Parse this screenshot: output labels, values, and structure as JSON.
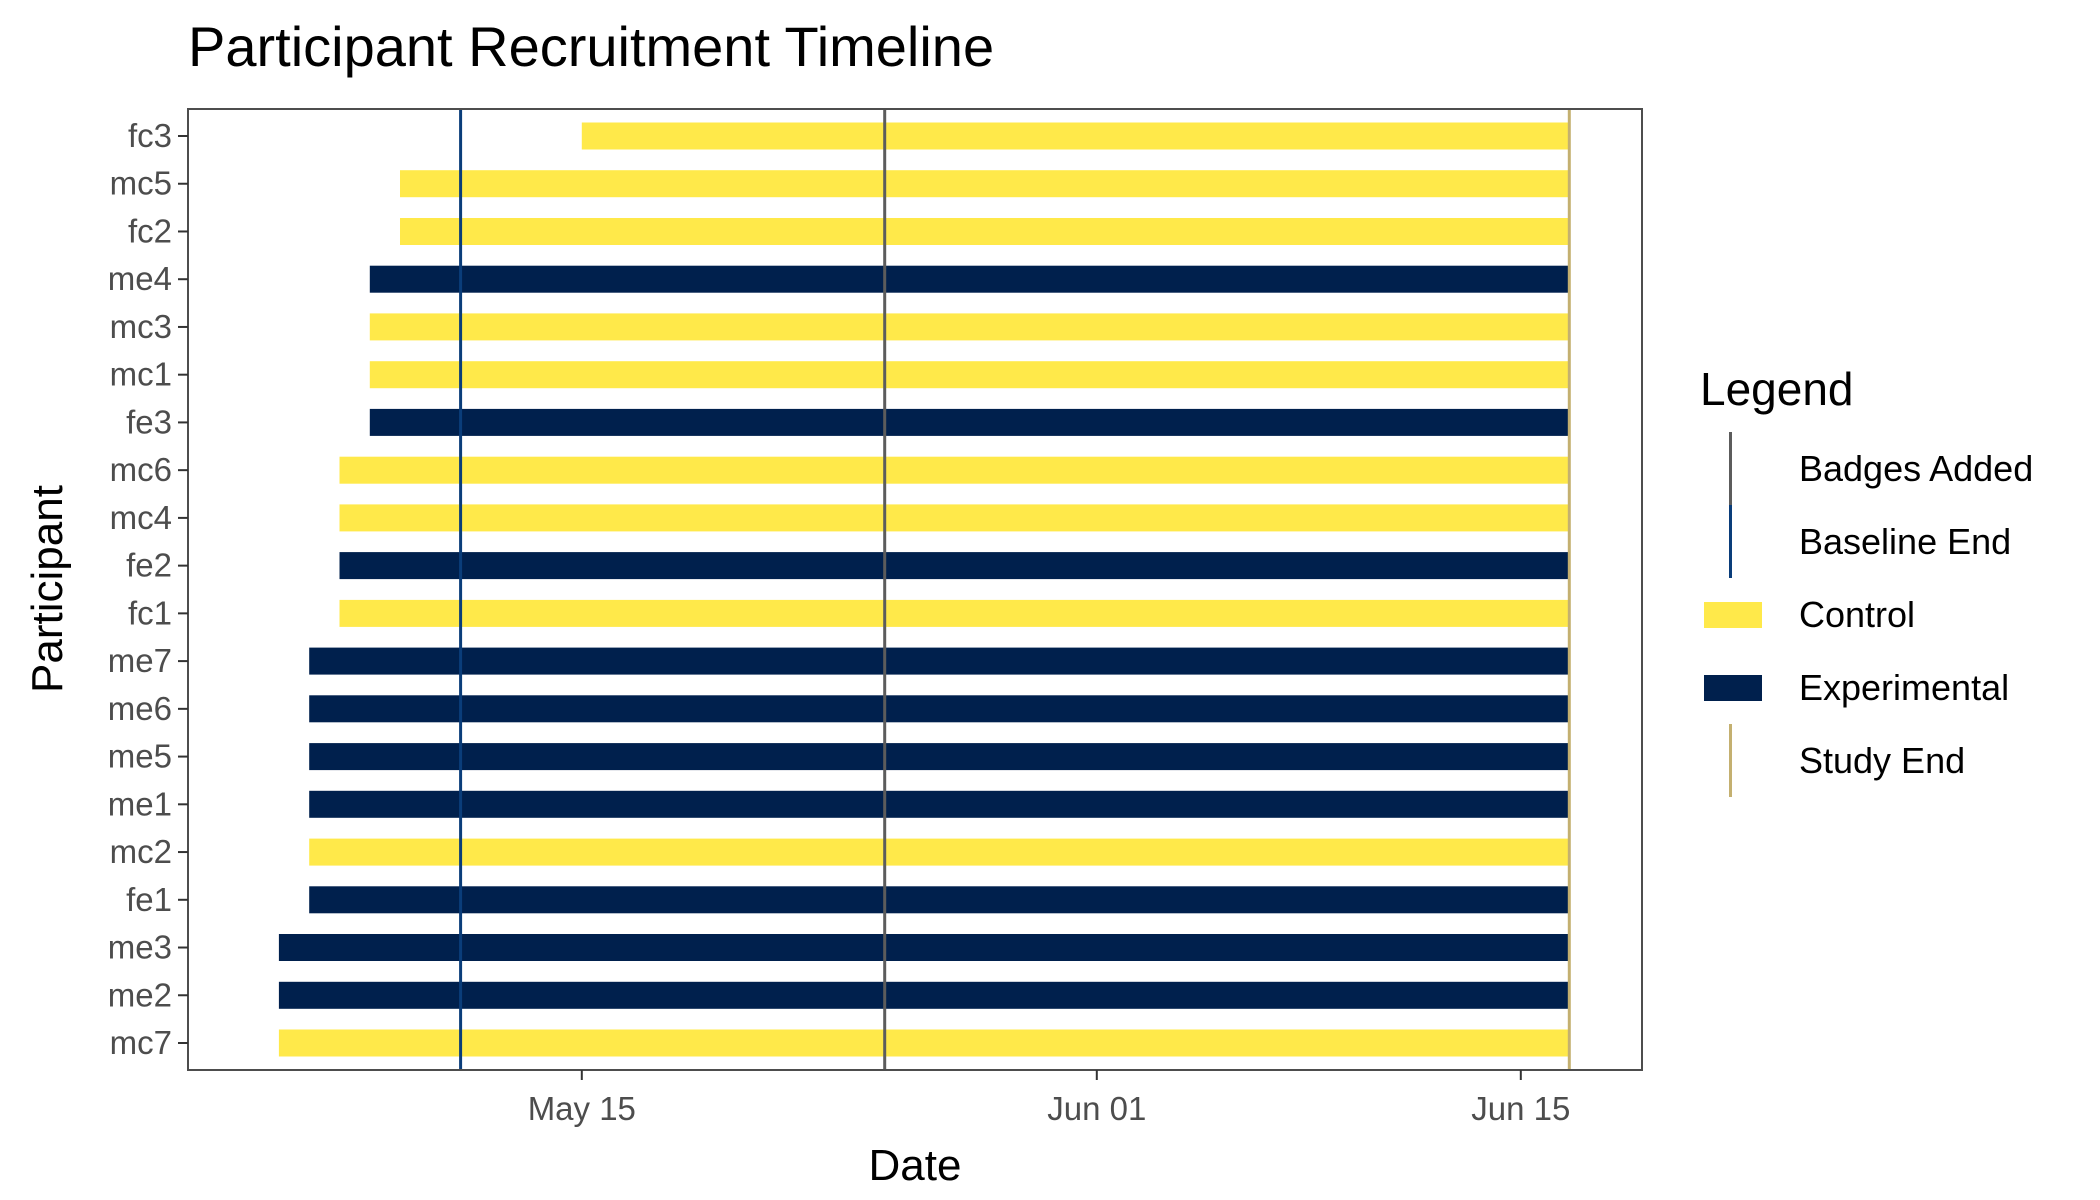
{
  "chart_data": {
    "type": "bar",
    "orientation": "horizontal-range",
    "title": "Participant Recruitment Timeline",
    "xlabel": "Date",
    "ylabel": "Participant",
    "x_ticks": [
      "May 15",
      "Jun 01",
      "Jun 15"
    ],
    "x_tick_dates": [
      "2023-05-15",
      "2023-06-01",
      "2023-06-15"
    ],
    "xlim": [
      "2023-05-02",
      "2023-06-19"
    ],
    "grid": false,
    "legend_position": "right",
    "participants": [
      {
        "id": "fc3",
        "group": "Control",
        "start": "2023-05-15",
        "end": "2023-06-16"
      },
      {
        "id": "mc5",
        "group": "Control",
        "start": "2023-05-09",
        "end": "2023-06-16"
      },
      {
        "id": "fc2",
        "group": "Control",
        "start": "2023-05-09",
        "end": "2023-06-16"
      },
      {
        "id": "me4",
        "group": "Experimental",
        "start": "2023-05-08",
        "end": "2023-06-16"
      },
      {
        "id": "mc3",
        "group": "Control",
        "start": "2023-05-08",
        "end": "2023-06-16"
      },
      {
        "id": "mc1",
        "group": "Control",
        "start": "2023-05-08",
        "end": "2023-06-16"
      },
      {
        "id": "fe3",
        "group": "Experimental",
        "start": "2023-05-08",
        "end": "2023-06-16"
      },
      {
        "id": "mc6",
        "group": "Control",
        "start": "2023-05-07",
        "end": "2023-06-16"
      },
      {
        "id": "mc4",
        "group": "Control",
        "start": "2023-05-07",
        "end": "2023-06-16"
      },
      {
        "id": "fe2",
        "group": "Experimental",
        "start": "2023-05-07",
        "end": "2023-06-16"
      },
      {
        "id": "fc1",
        "group": "Control",
        "start": "2023-05-07",
        "end": "2023-06-16"
      },
      {
        "id": "me7",
        "group": "Experimental",
        "start": "2023-05-06",
        "end": "2023-06-16"
      },
      {
        "id": "me6",
        "group": "Experimental",
        "start": "2023-05-06",
        "end": "2023-06-16"
      },
      {
        "id": "me5",
        "group": "Experimental",
        "start": "2023-05-06",
        "end": "2023-06-16"
      },
      {
        "id": "me1",
        "group": "Experimental",
        "start": "2023-05-06",
        "end": "2023-06-16"
      },
      {
        "id": "mc2",
        "group": "Control",
        "start": "2023-05-06",
        "end": "2023-06-16"
      },
      {
        "id": "fe1",
        "group": "Experimental",
        "start": "2023-05-06",
        "end": "2023-06-16"
      },
      {
        "id": "me3",
        "group": "Experimental",
        "start": "2023-05-05",
        "end": "2023-06-16"
      },
      {
        "id": "me2",
        "group": "Experimental",
        "start": "2023-05-05",
        "end": "2023-06-16"
      },
      {
        "id": "mc7",
        "group": "Control",
        "start": "2023-05-05",
        "end": "2023-06-16"
      }
    ],
    "reference_lines": [
      {
        "name": "Badges Added",
        "date": "2023-05-25",
        "color": "#5c5c5c"
      },
      {
        "name": "Baseline End",
        "date": "2023-05-11",
        "color": "#0a3d7a"
      },
      {
        "name": "Study End",
        "date": "2023-06-16",
        "color": "#c4b070"
      }
    ],
    "legend": {
      "title": "Legend",
      "items": [
        {
          "label": "Badges Added",
          "kind": "line",
          "color": "#5c5c5c"
        },
        {
          "label": "Baseline End",
          "kind": "line",
          "color": "#0a3d7a"
        },
        {
          "label": "Control",
          "kind": "fill",
          "color": "#ffe94a"
        },
        {
          "label": "Experimental",
          "kind": "fill",
          "color": "#00204d"
        },
        {
          "label": "Study End",
          "kind": "line",
          "color": "#c4b070"
        }
      ]
    },
    "colors": {
      "Control": "#ffe94a",
      "Experimental": "#00204d"
    }
  }
}
